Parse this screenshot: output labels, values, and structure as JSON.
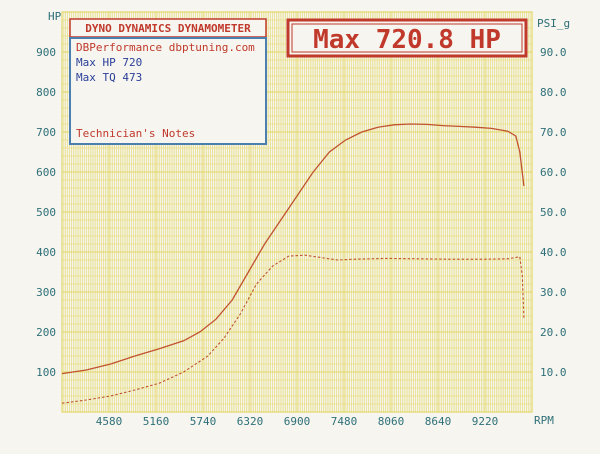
{
  "header": {
    "dyno_title": "DYNO DYNAMICS DYNAMOMETER",
    "max_banner": "Max 720.8 HP"
  },
  "info_box": {
    "shop": "DBPerformance dbptuning.com",
    "max_hp_line": "Max HP 720",
    "max_tq_line": "Max TQ 473",
    "notes_label": "Technician's Notes"
  },
  "axes": {
    "left_unit": "HP",
    "right_unit": "PSI_g",
    "x_unit": "RPM"
  },
  "colors": {
    "grid": "#e3d86a",
    "axis_text": "#2e6f78",
    "curve": "#c0532e",
    "banner_red": "#c0392b",
    "box_border": "#4a7fb0",
    "info_text": "#2a3f9a"
  },
  "chart_data": {
    "type": "line",
    "title": "",
    "xlabel": "RPM",
    "ylabel": "HP",
    "y2label": "PSI_g",
    "xlim": [
      4000,
      9800
    ],
    "ylim": [
      0,
      1000
    ],
    "y2lim": [
      0,
      100
    ],
    "x_ticks": [
      4580,
      5160,
      5740,
      6320,
      6900,
      7480,
      8060,
      8640,
      9220
    ],
    "y_ticks": [
      100,
      200,
      300,
      400,
      500,
      600,
      700,
      800,
      900
    ],
    "y2_ticks": [
      "10.0",
      "20.0",
      "30.0",
      "40.0",
      "50.0",
      "60.0",
      "70.0",
      "80.0",
      "90.0"
    ],
    "grid": true,
    "series": [
      {
        "axis": "left",
        "style": "solid",
        "x": [
          4000,
          4300,
          4600,
          4900,
          5200,
          5500,
          5700,
          5900,
          6100,
          6300,
          6500,
          6700,
          6900,
          7100,
          7300,
          7500,
          7700,
          7900,
          8100,
          8300,
          8500,
          8700,
          8900,
          9100,
          9300,
          9500,
          9600,
          9650,
          9700
        ],
        "values": [
          96,
          105,
          120,
          140,
          158,
          178,
          200,
          232,
          280,
          350,
          420,
          480,
          540,
          600,
          650,
          680,
          700,
          712,
          718,
          720,
          719,
          716,
          714,
          712,
          709,
          702,
          690,
          650,
          565
        ]
      },
      {
        "axis": "right",
        "style": "dashed",
        "x": [
          4000,
          4300,
          4600,
          4900,
          5200,
          5500,
          5800,
          6000,
          6200,
          6400,
          6600,
          6800,
          7000,
          7200,
          7400,
          7600,
          8000,
          8400,
          8800,
          9200,
          9500,
          9650,
          9680,
          9700
        ],
        "values": [
          2.2,
          3.0,
          4.0,
          5.5,
          7.2,
          10.0,
          14.0,
          18.5,
          24.5,
          32.0,
          36.5,
          39.0,
          39.2,
          38.6,
          38.0,
          38.2,
          38.4,
          38.3,
          38.2,
          38.2,
          38.3,
          38.8,
          34.0,
          23.5
        ]
      }
    ]
  }
}
